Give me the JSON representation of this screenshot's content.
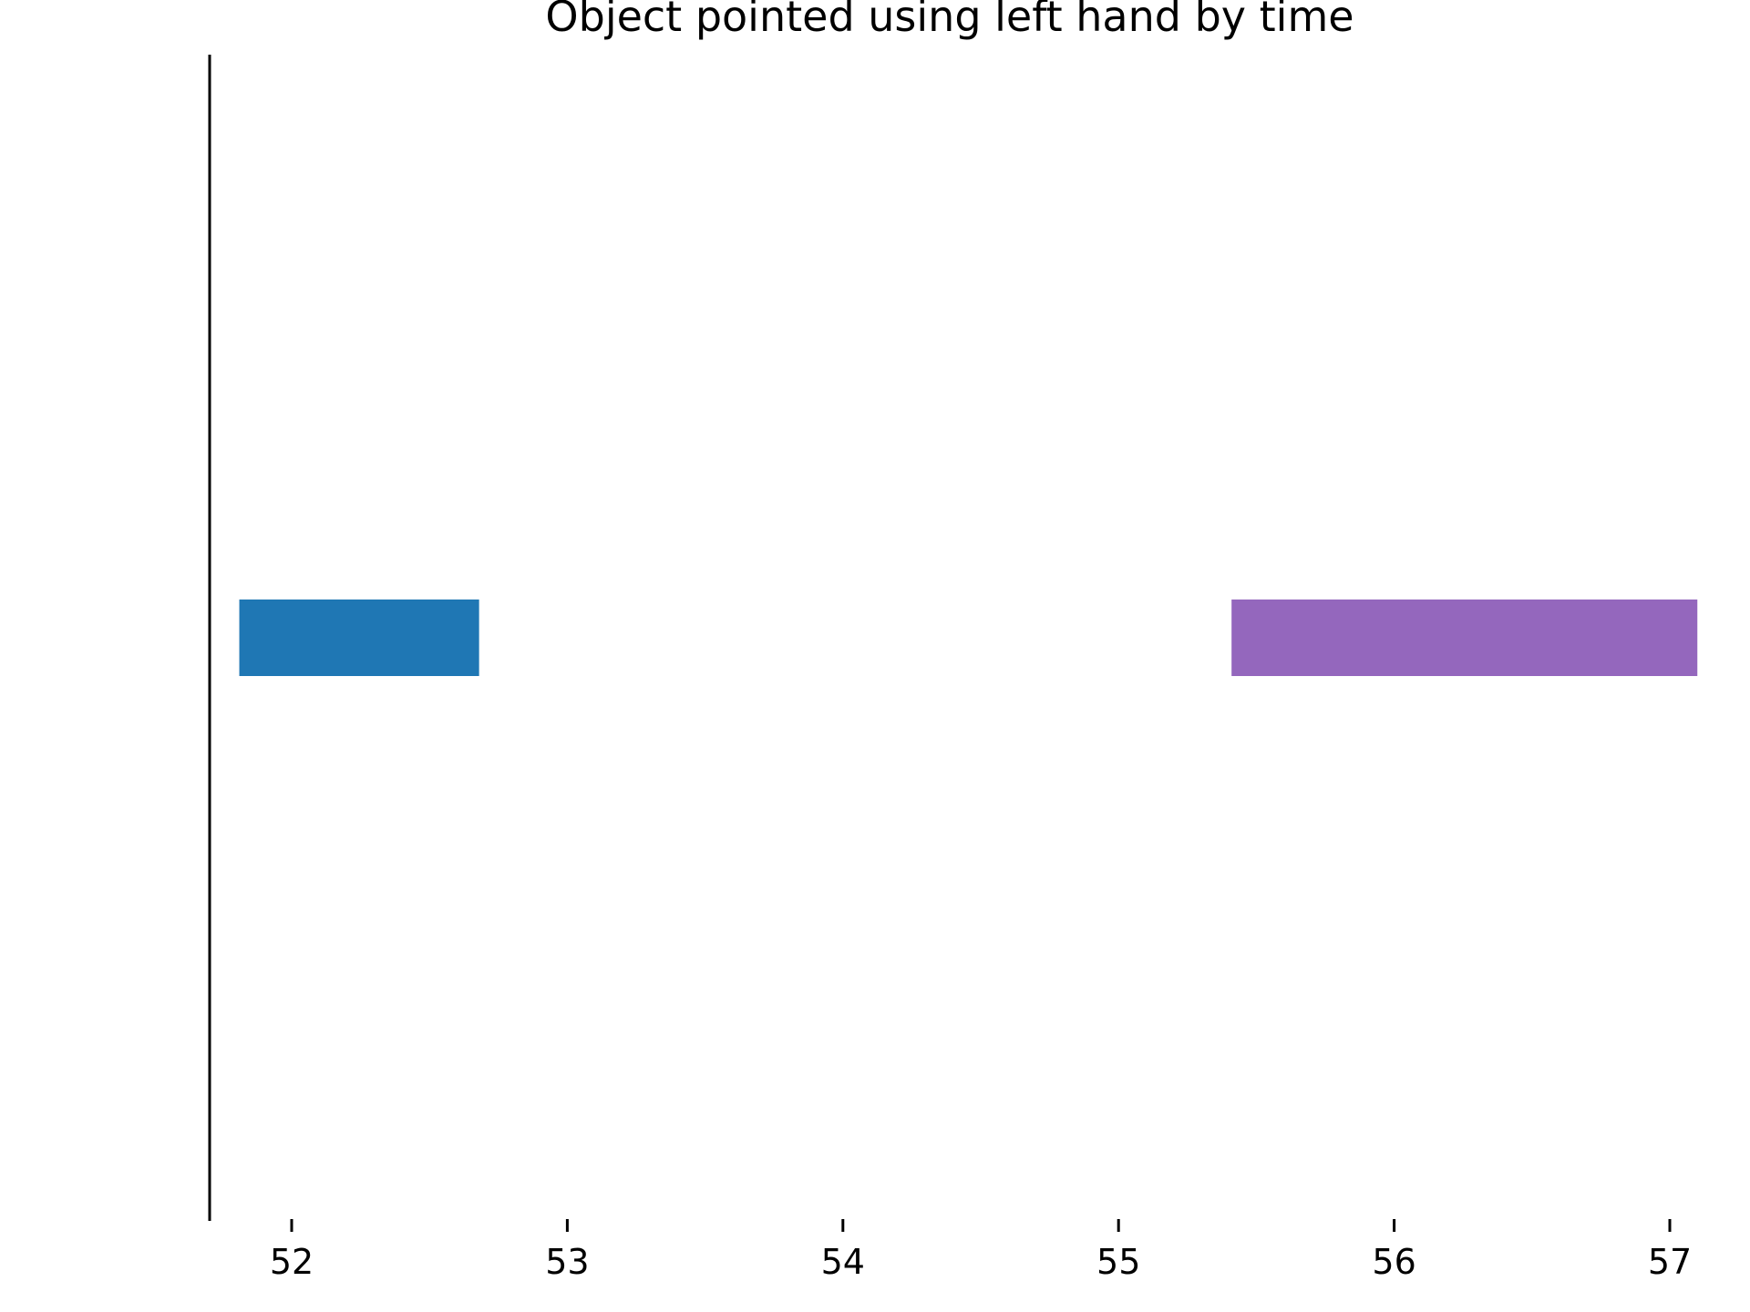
{
  "chart_data": {
    "type": "bar",
    "orientation": "horizontal",
    "title": "Object pointed using left hand by time",
    "xlabel": "",
    "ylabel": "",
    "xlim": [
      51.7,
      57.15
    ],
    "x_ticks": [
      "52",
      "53",
      "54",
      "55",
      "56",
      "57"
    ],
    "x_tick_values": [
      52,
      53,
      54,
      55,
      56,
      57
    ],
    "grid": false,
    "legend": "none",
    "segments": [
      {
        "start": 51.81,
        "end": 52.68,
        "color": "#1f77b4"
      },
      {
        "start": 55.41,
        "end": 57.1,
        "color": "#9467bd"
      }
    ],
    "axis_color": "#000000"
  }
}
